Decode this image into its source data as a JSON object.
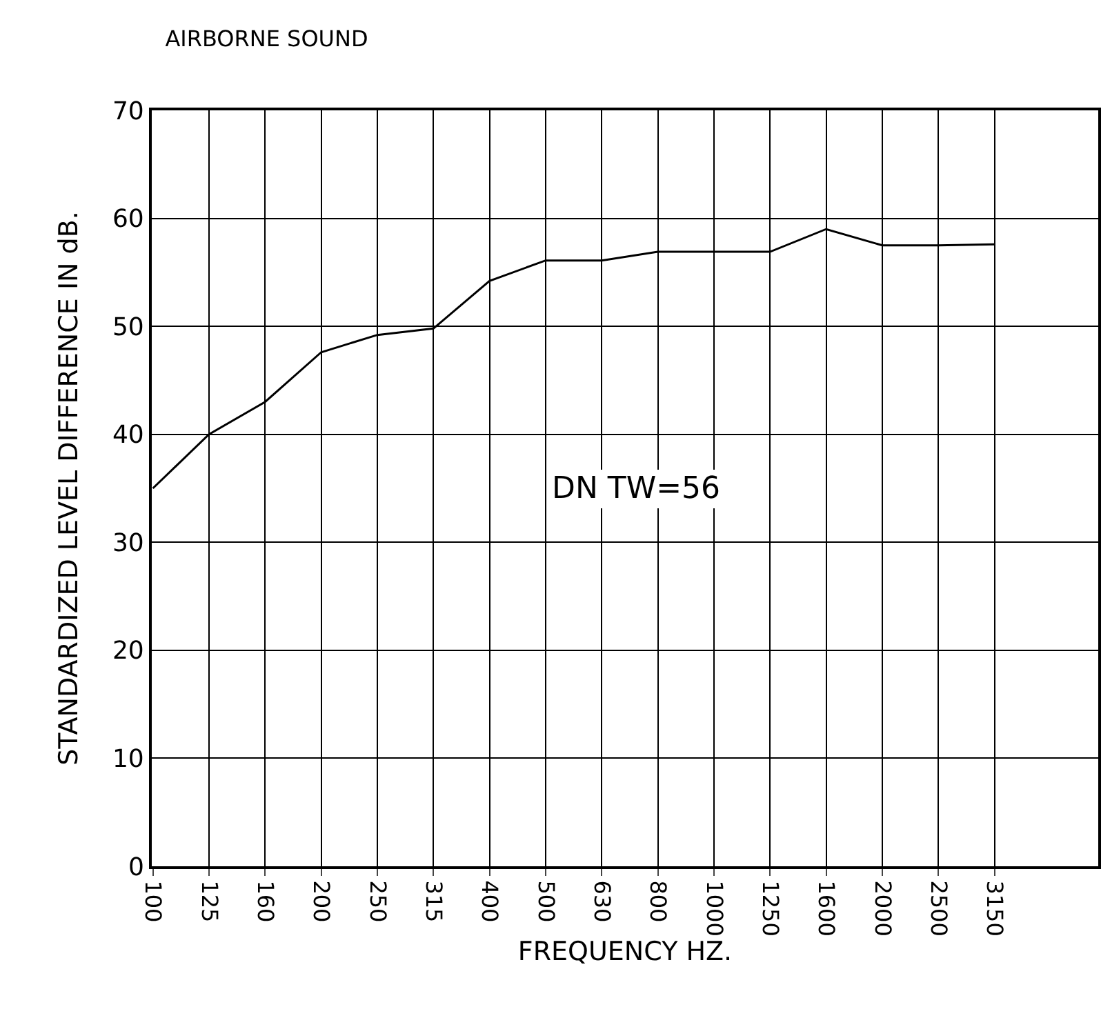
{
  "chart_data": {
    "type": "line",
    "title": "AIRBORNE SOUND",
    "xlabel": "FREQUENCY HZ.",
    "ylabel": "STANDARDIZED LEVEL DIFFERENCE IN dB.",
    "categories": [
      "100",
      "125",
      "160",
      "200",
      "250",
      "315",
      "400",
      "500",
      "630",
      "800",
      "1000",
      "1250",
      "1600",
      "2000",
      "2500",
      "3150",
      null
    ],
    "series": [
      {
        "color": "#000000",
        "values": [
          35,
          40,
          43,
          47.6,
          49.2,
          49.8,
          54.2,
          56.1,
          56.1,
          56.9,
          56.9,
          56.9,
          59.0,
          57.5,
          57.5,
          57.6,
          null
        ]
      }
    ],
    "ylim": [
      0,
      70
    ],
    "yticks": [
      0,
      10,
      20,
      30,
      40,
      50,
      60,
      70
    ],
    "grid": true,
    "marker": "none",
    "line_style": "solid",
    "annotations": [
      "DN TW=56"
    ]
  }
}
